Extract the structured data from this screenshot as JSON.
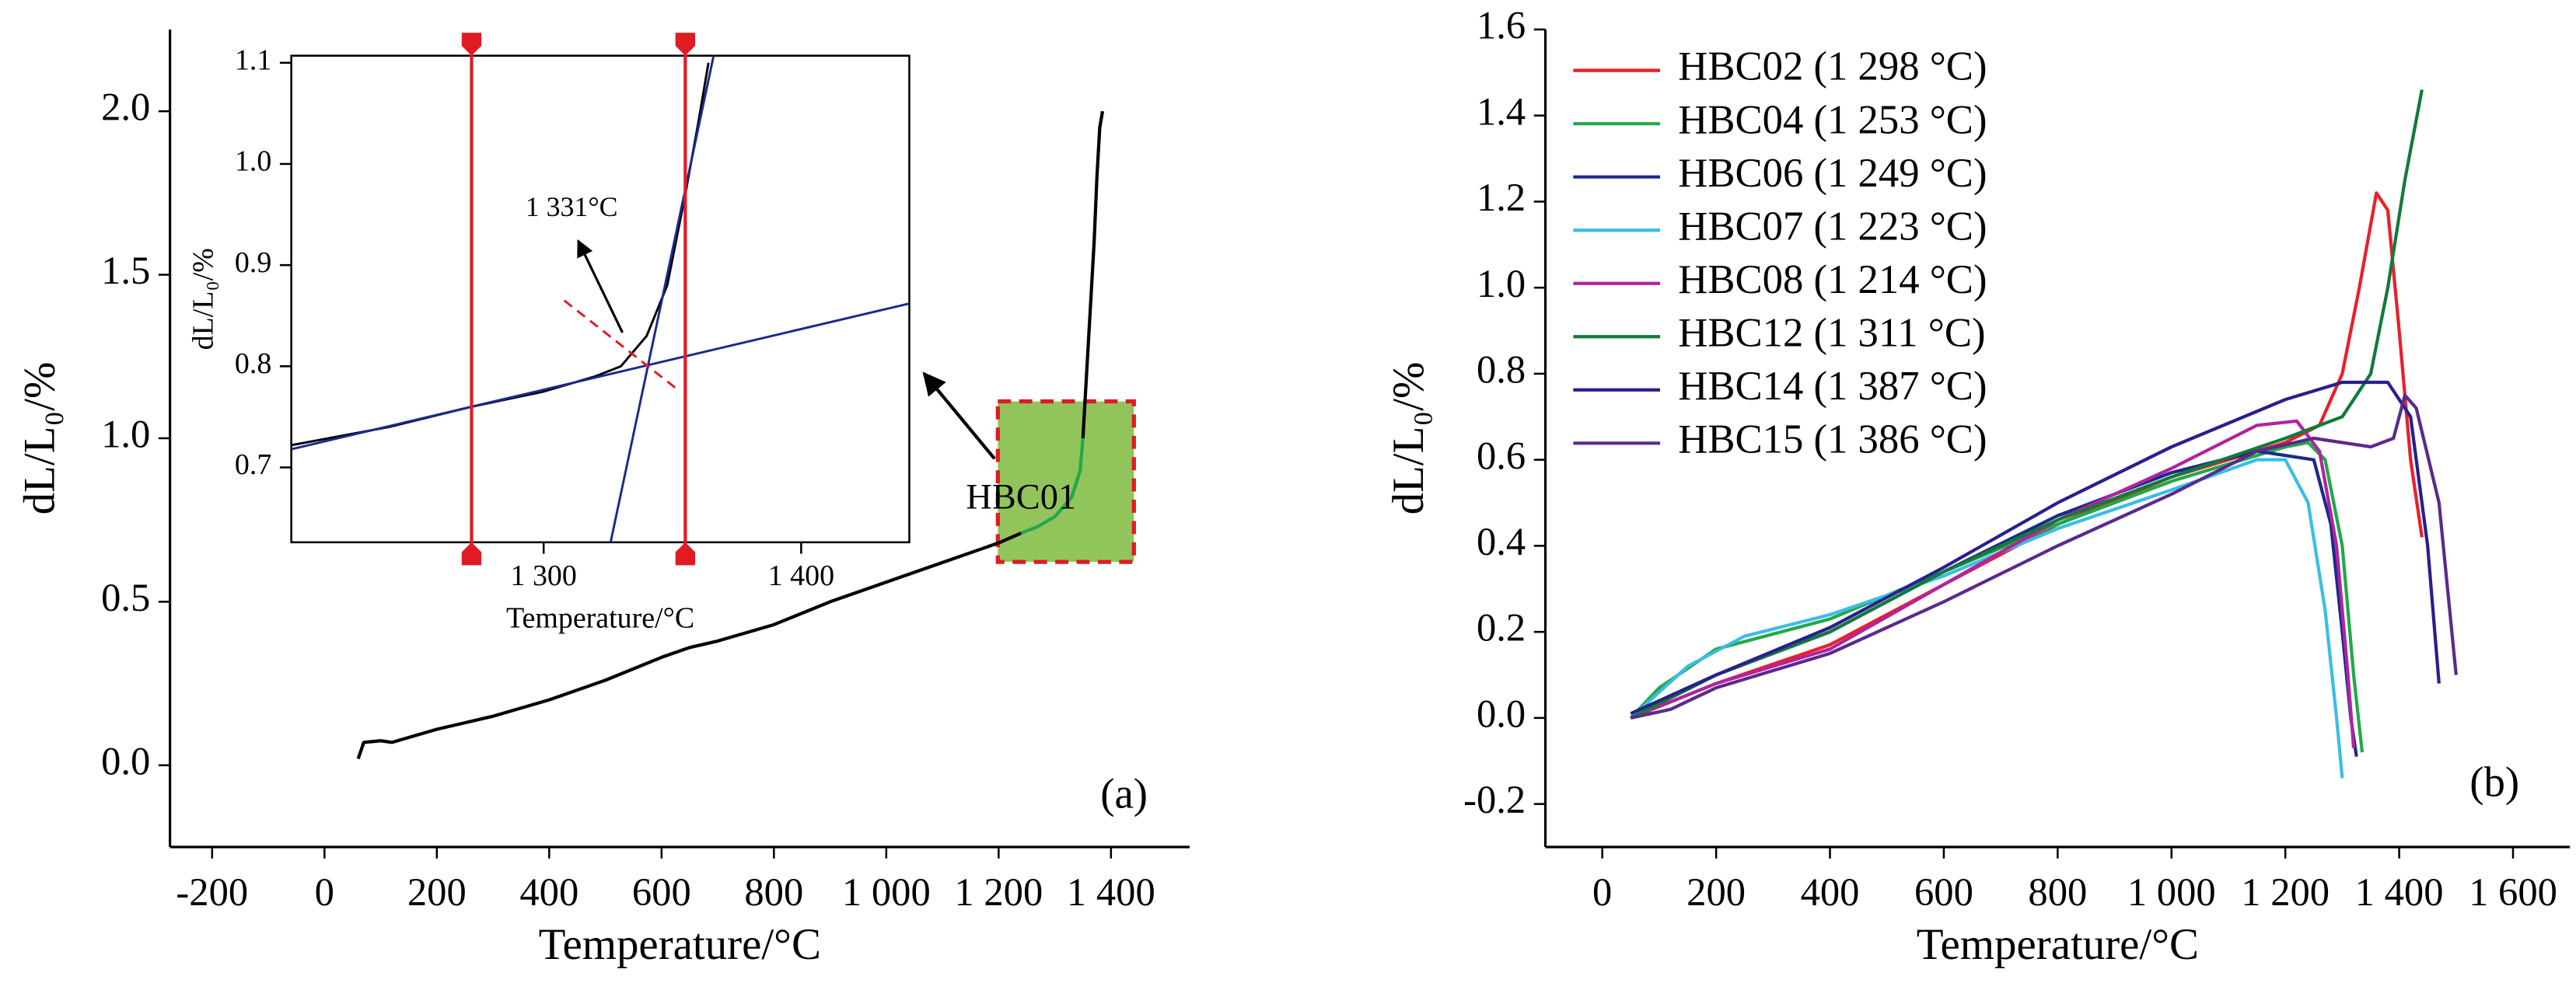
{
  "chart_data": [
    {
      "type": "line",
      "x_label": "Temperature/°C",
      "y_label": "dL/L₀/%",
      "panel_label": "(a)",
      "legend": "inline",
      "xlim": [
        -275,
        1540
      ],
      "ylim": [
        -0.25,
        2.25
      ],
      "xticks": [
        -200,
        0,
        200,
        400,
        600,
        800,
        {
          "value": 1000,
          "label": "1 000"
        },
        {
          "value": 1200,
          "label": "1 200"
        },
        {
          "value": 1400,
          "label": "1 400"
        }
      ],
      "yticks": [
        {
          "value": 0,
          "label": "0.0"
        },
        0.5,
        {
          "value": 1,
          "label": "1.0"
        },
        1.5,
        {
          "value": 2,
          "label": "2.0"
        }
      ],
      "series": [
        {
          "name": "HBC01",
          "color": "#000000",
          "x": [
            60,
            70,
            100,
            120,
            200,
            300,
            400,
            500,
            600,
            650,
            700,
            800,
            900,
            1000,
            1100,
            1200,
            1240
          ],
          "values": [
            0.02,
            0.07,
            0.075,
            0.07,
            0.11,
            0.15,
            0.2,
            0.26,
            0.33,
            0.36,
            0.38,
            0.43,
            0.5,
            0.56,
            0.62,
            0.68,
            0.71
          ]
        },
        {
          "color": "#22a84a",
          "x": [
            1240,
            1270,
            1300,
            1330,
            1345,
            1350
          ],
          "values": [
            0.71,
            0.73,
            0.76,
            0.82,
            0.9,
            1.0
          ]
        },
        {
          "color": "#000000",
          "x": [
            1350,
            1360,
            1370,
            1375,
            1380,
            1385
          ],
          "values": [
            1.0,
            1.3,
            1.6,
            1.8,
            1.95,
            2.0
          ]
        }
      ]
    },
    {
      "type": "line",
      "x_label": "Temperature/°C",
      "y_label": "dL/L₀/%",
      "annotation": "1 331°C",
      "xlim": [
        1202,
        1442
      ],
      "ylim": [
        0.626,
        1.107
      ],
      "xticks": [
        {
          "value": 1300,
          "label": "1 300"
        },
        {
          "value": 1400,
          "label": "1 400"
        }
      ],
      "yticks": [
        0.7,
        0.8,
        0.9,
        {
          "value": 1,
          "label": "1.0"
        },
        1.1
      ],
      "vlines": [
        1272,
        1355
      ],
      "vline_color": "#e01b24",
      "series": [
        {
          "color": "#000000",
          "x": [
            1202,
            1240,
            1272,
            1300,
            1320,
            1330,
            1340,
            1348,
            1355,
            1360,
            1364
          ],
          "values": [
            0.722,
            0.74,
            0.76,
            0.775,
            0.79,
            0.8,
            0.83,
            0.88,
            0.97,
            1.04,
            1.1
          ]
        },
        {
          "color": "#1a2a8c",
          "x": [
            1202,
            1442
          ],
          "values": [
            0.718,
            0.862
          ]
        },
        {
          "color": "#1a2a8c",
          "x": [
            1326,
            1366
          ],
          "values": [
            0.626,
            1.107
          ]
        },
        {
          "color": "#e01b24",
          "dashed": true,
          "x": [
            1308,
            1352
          ],
          "values": [
            0.865,
            0.777
          ]
        }
      ]
    },
    {
      "type": "line",
      "x_label": "Temperature/°C",
      "y_label": "dL/L₀/%",
      "panel_label": "(b)",
      "legend": "upper left",
      "xlim": [
        -100,
        1700
      ],
      "ylim": [
        -0.3,
        1.6
      ],
      "xticks": [
        0,
        200,
        400,
        600,
        800,
        {
          "value": 1000,
          "label": "1 000"
        },
        {
          "value": 1200,
          "label": "1 200"
        },
        {
          "value": 1400,
          "label": "1 400"
        },
        {
          "value": 1600,
          "label": "1 600"
        }
      ],
      "yticks": [
        -0.2,
        {
          "value": 0,
          "label": "0.0"
        },
        0.2,
        0.4,
        0.6,
        0.8,
        {
          "value": 1,
          "label": "1.0"
        },
        1.2,
        1.4,
        1.6
      ],
      "series": [
        {
          "name": "HBC02 (1 298 °C)",
          "color": "#e8202a",
          "x": [
            50,
            200,
            400,
            600,
            800,
            1000,
            1100,
            1200,
            1260,
            1300,
            1330,
            1360,
            1380,
            1400,
            1420,
            1440
          ],
          "values": [
            0,
            0.08,
            0.17,
            0.31,
            0.45,
            0.56,
            0.6,
            0.64,
            0.68,
            0.8,
            1.0,
            1.22,
            1.18,
            0.9,
            0.6,
            0.42
          ]
        },
        {
          "name": "HBC04 (1 253 °C)",
          "color": "#22a84a",
          "x": [
            50,
            100,
            200,
            400,
            600,
            800,
            1000,
            1200,
            1240,
            1270,
            1300,
            1320,
            1335
          ],
          "values": [
            0,
            0.07,
            0.16,
            0.23,
            0.34,
            0.45,
            0.55,
            0.63,
            0.64,
            0.6,
            0.4,
            0.1,
            -0.08
          ]
        },
        {
          "name": "HBC06 (1 249 °C)",
          "color": "#1a2a8c",
          "x": [
            50,
            200,
            400,
            600,
            800,
            1000,
            1150,
            1250,
            1280,
            1300,
            1315,
            1325
          ],
          "values": [
            0,
            0.1,
            0.2,
            0.34,
            0.47,
            0.57,
            0.62,
            0.6,
            0.45,
            0.2,
            0,
            -0.09
          ]
        },
        {
          "name": "HBC07 (1 223 °C)",
          "color": "#3bbde6",
          "x": [
            50,
            150,
            250,
            400,
            600,
            800,
            1000,
            1150,
            1200,
            1240,
            1270,
            1290,
            1300
          ],
          "values": [
            0,
            0.12,
            0.19,
            0.24,
            0.33,
            0.44,
            0.53,
            0.6,
            0.6,
            0.5,
            0.25,
            0,
            -0.14
          ]
        },
        {
          "name": "HBC08 (1 214 °C)",
          "color": "#b0249e",
          "x": [
            50,
            200,
            400,
            600,
            800,
            1000,
            1150,
            1220,
            1260,
            1290,
            1310,
            1320
          ],
          "values": [
            0,
            0.08,
            0.16,
            0.31,
            0.46,
            0.58,
            0.68,
            0.69,
            0.62,
            0.4,
            0.1,
            -0.07
          ]
        },
        {
          "name": "HBC12 (1 311 °C)",
          "color": "#127a3a",
          "x": [
            50,
            200,
            400,
            600,
            800,
            1000,
            1200,
            1300,
            1350,
            1380,
            1410,
            1440
          ],
          "values": [
            0,
            0.1,
            0.2,
            0.34,
            0.46,
            0.56,
            0.65,
            0.7,
            0.8,
            1.0,
            1.25,
            1.46
          ]
        },
        {
          "name": "HBC14 (1 387 °C)",
          "color": "#28208c",
          "x": [
            50,
            200,
            400,
            600,
            800,
            1000,
            1200,
            1300,
            1380,
            1420,
            1450,
            1470
          ],
          "values": [
            0.01,
            0.1,
            0.21,
            0.35,
            0.5,
            0.63,
            0.74,
            0.78,
            0.78,
            0.7,
            0.4,
            0.08
          ]
        },
        {
          "name": "HBC15 (1 386 °C)",
          "color": "#5b2a8c",
          "x": [
            50,
            120,
            200,
            400,
            600,
            800,
            1000,
            1150,
            1250,
            1350,
            1390,
            1410,
            1430,
            1470,
            1500
          ],
          "values": [
            0,
            0.02,
            0.07,
            0.15,
            0.27,
            0.4,
            0.52,
            0.62,
            0.65,
            0.63,
            0.65,
            0.75,
            0.72,
            0.5,
            0.1
          ]
        }
      ]
    }
  ]
}
